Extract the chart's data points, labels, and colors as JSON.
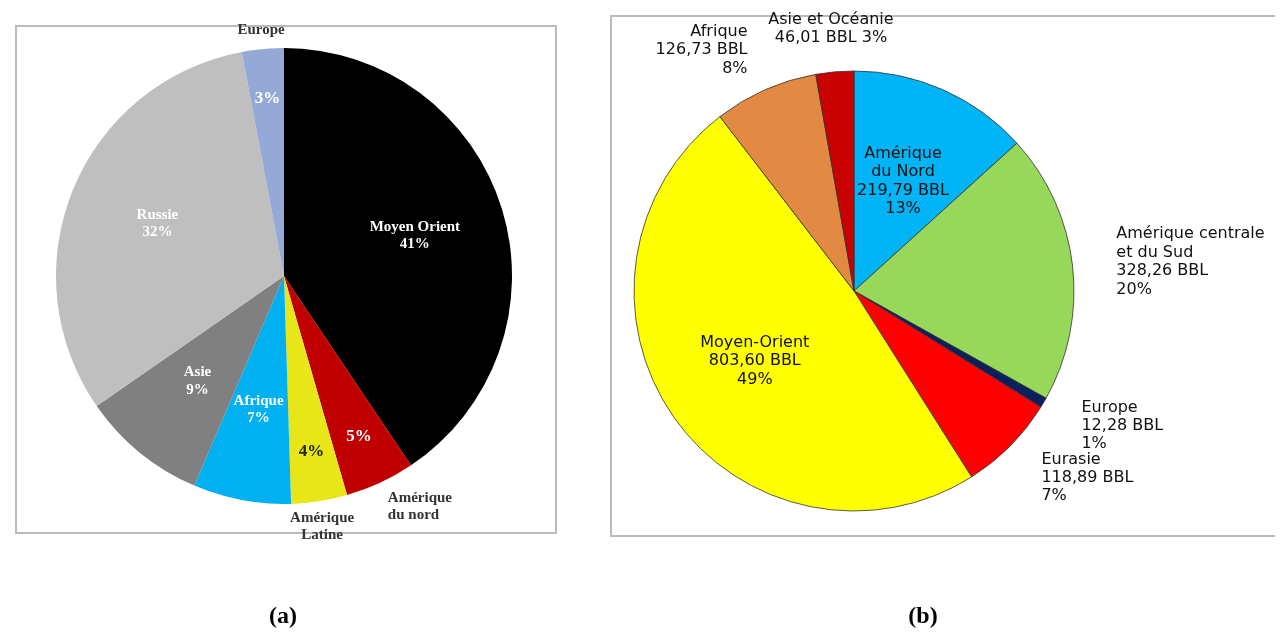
{
  "chart_data": [
    {
      "type": "pie",
      "categories": [
        "Moyen Orient",
        "Amérique\ndu nord",
        "Amérique\nLatine",
        "Afrique",
        "Asie",
        "Russie",
        "Europe"
      ],
      "values": [
        41,
        5,
        4,
        7,
        9,
        32,
        3
      ],
      "colors": [
        "#000000",
        "#c00000",
        "#e6e619",
        "#00b0f0",
        "#808080",
        "#bfbfbf",
        "#95a9d6"
      ],
      "value_labels": [
        "41%",
        "5%",
        "4%",
        "7%",
        "9%",
        "32%",
        "3%"
      ],
      "annotations": [
        "(a)"
      ]
    },
    {
      "type": "pie",
      "categories": [
        "Amérique\ndu Nord",
        "Amérique centrale\net du Sud",
        "Europe",
        "Eurasie",
        "Moyen-Orient",
        "Afrique",
        "Asie et Océanie"
      ],
      "values": [
        219.79,
        328.26,
        12.28,
        118.89,
        803.6,
        126.73,
        46.01
      ],
      "colors": [
        "#00b4f5",
        "#97d75a",
        "#0a1f5c",
        "#ff0000",
        "#ffff00",
        "#e28a43",
        "#c80000"
      ],
      "value_labels": [
        "219,79 BBL\n13%",
        "328,26 BBL\n20%",
        "12,28 BBL\n1%",
        "118,89 BBL\n7%",
        "803,60 BBL\n49%",
        "126,73 BBL\n8%",
        "46,01 BBL 3%"
      ],
      "annotations": [
        "(b)"
      ]
    }
  ]
}
